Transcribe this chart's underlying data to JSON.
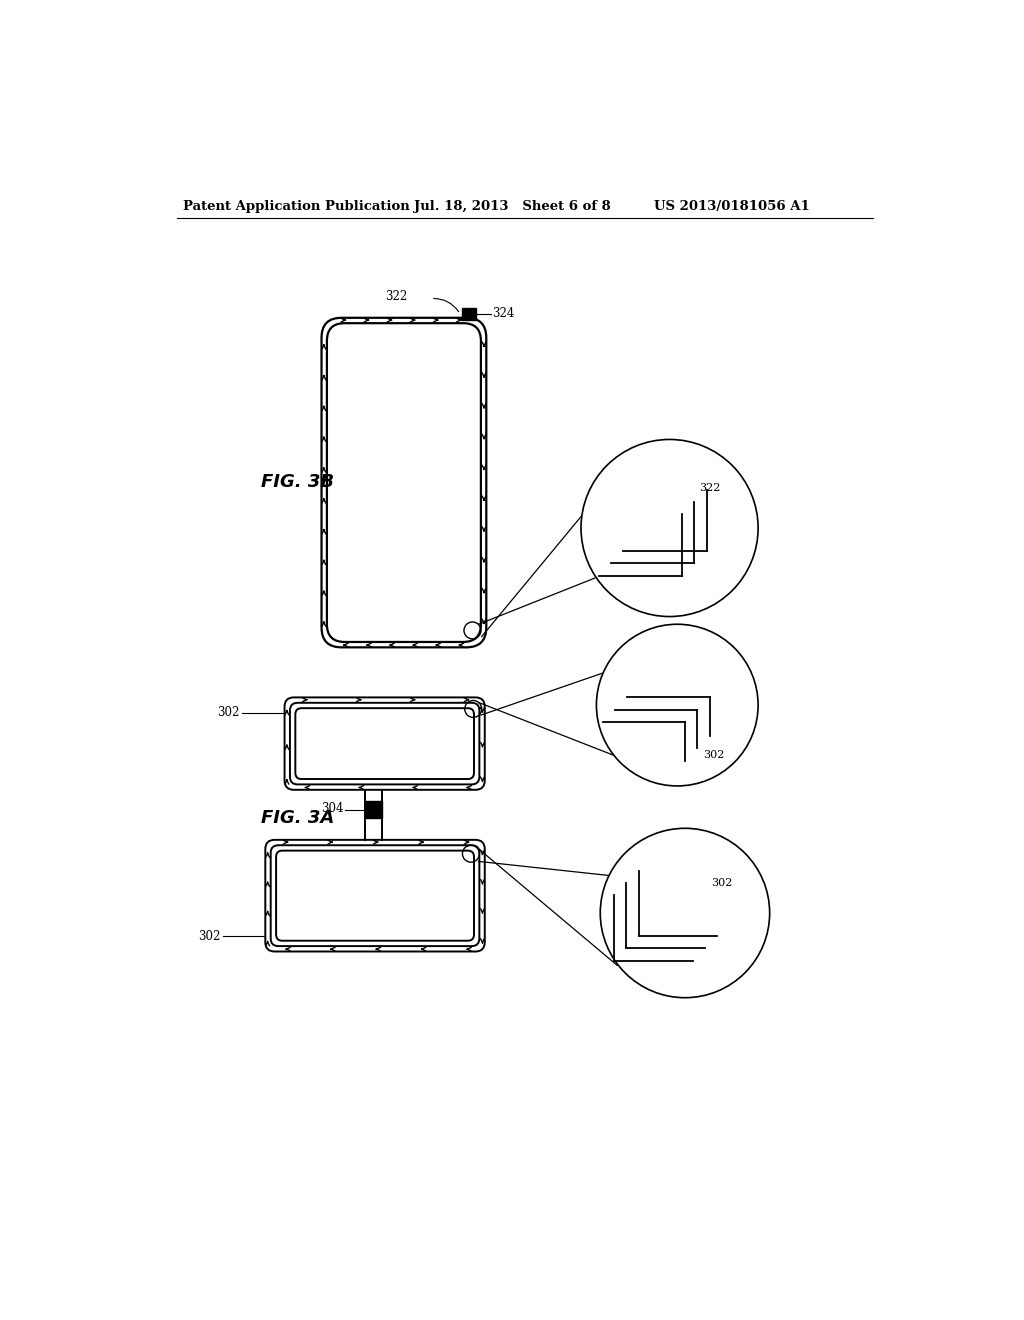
{
  "header_left": "Patent Application Publication",
  "header_mid": "Jul. 18, 2013   Sheet 6 of 8",
  "header_right": "US 2013/0181056 A1",
  "fig3b_label": "FIG. 3B",
  "fig3a_label": "FIG. 3A",
  "label_322": "322",
  "label_324": "324",
  "label_302": "302",
  "label_304": "304",
  "bg_color": "#ffffff",
  "line_color": "#000000"
}
